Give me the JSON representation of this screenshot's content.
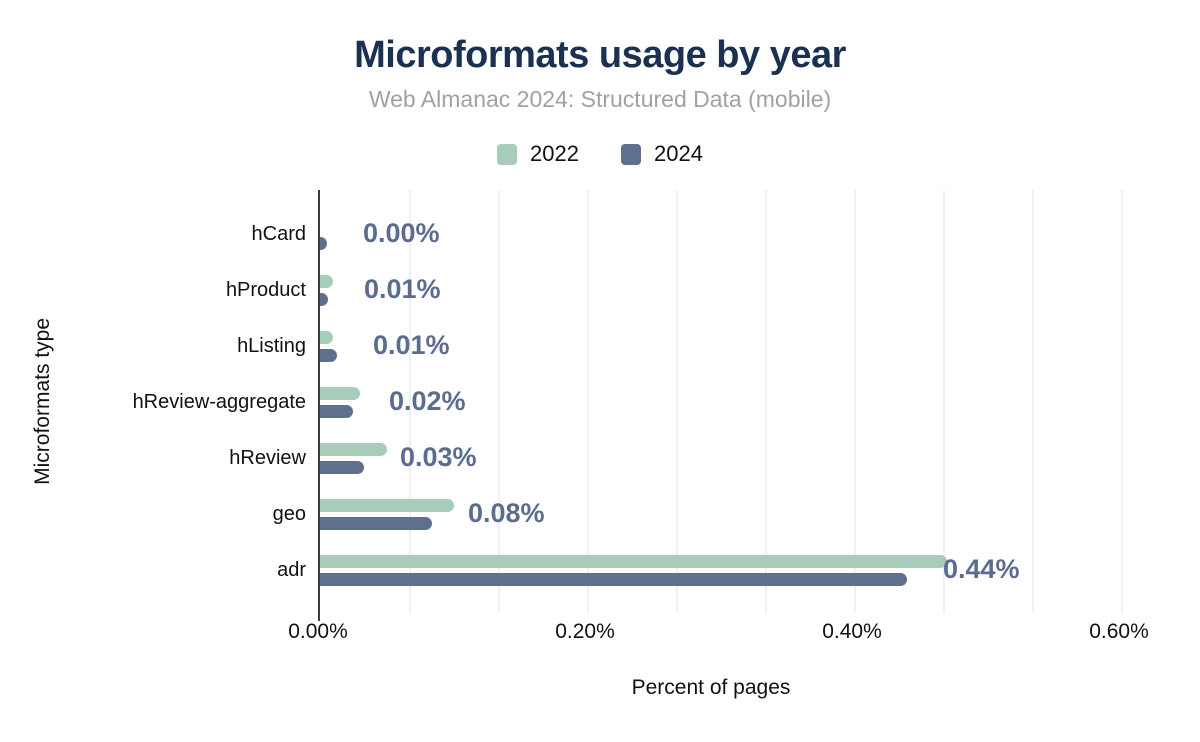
{
  "header": {
    "title": "Microformats usage by year",
    "subtitle": "Web Almanac 2024: Structured Data (mobile)"
  },
  "legend": [
    {
      "label": "2022",
      "color": "#a7ccba"
    },
    {
      "label": "2024",
      "color": "#5f708d"
    }
  ],
  "chart_data": {
    "type": "bar",
    "orientation": "horizontal",
    "title": "Microformats usage by year",
    "subtitle": "Web Almanac 2024: Structured Data (mobile)",
    "categories": [
      "hCard",
      "hProduct",
      "hListing",
      "hReview-aggregate",
      "hReview",
      "geo",
      "adr"
    ],
    "series": [
      {
        "name": "2022",
        "color": "#a7ccba",
        "values": [
          0.0,
          0.01,
          0.01,
          0.03,
          0.05,
          0.1,
          0.47
        ]
      },
      {
        "name": "2024",
        "color": "#5f708d",
        "values": [
          0.005,
          0.006,
          0.013,
          0.025,
          0.033,
          0.084,
          0.44
        ]
      }
    ],
    "data_labels": [
      "0.00%",
      "0.01%",
      "0.01%",
      "0.02%",
      "0.03%",
      "0.08%",
      "0.44%"
    ],
    "data_label_series": "2024",
    "xlabel": "Percent of pages",
    "ylabel": "Microformats type",
    "x_ticks": [
      {
        "value": 0.0,
        "label": "0.00%"
      },
      {
        "value": 0.2,
        "label": "0.20%"
      },
      {
        "value": 0.4,
        "label": "0.40%"
      },
      {
        "value": 0.6,
        "label": "0.60%"
      }
    ],
    "xlim": [
      0,
      0.6
    ],
    "gridline_step": 0.066667,
    "legend_position": "top"
  },
  "colors": {
    "title": "#1c3151",
    "subtitle": "#a1a1a1",
    "value_label": "#5b6c8e",
    "axis_line": "#3a3a3a",
    "gridline": "#f1f1f1"
  }
}
